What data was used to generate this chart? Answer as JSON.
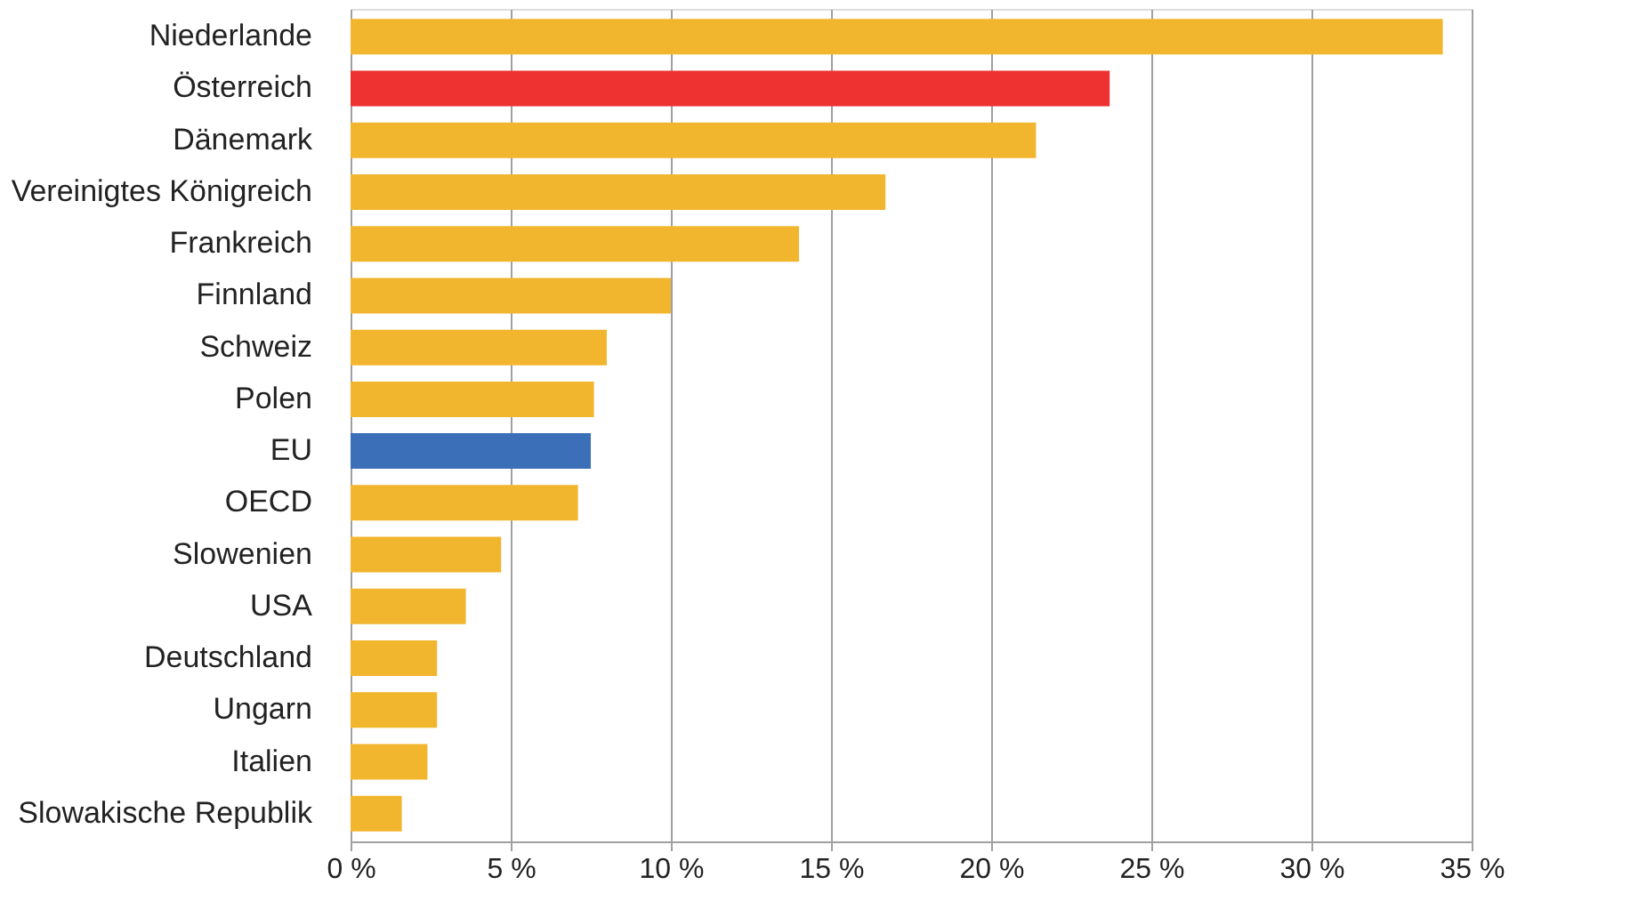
{
  "chart_data": {
    "type": "bar",
    "orientation": "horizontal",
    "categories": [
      "Niederlande",
      "Österreich",
      "Dänemark",
      "Vereinigtes Königreich",
      "Frankreich",
      "Finnland",
      "Schweiz",
      "Polen",
      "EU",
      "OECD",
      "Slowenien",
      "USA",
      "Deutschland",
      "Ungarn",
      "Italien",
      "Slowakische Republik"
    ],
    "values": [
      34.1,
      23.7,
      21.4,
      16.7,
      14.0,
      10.0,
      8.0,
      7.6,
      7.5,
      7.1,
      4.7,
      3.6,
      2.7,
      2.7,
      2.4,
      1.6
    ],
    "colors": [
      "#f2b62e",
      "#ee3232",
      "#f2b62e",
      "#f2b62e",
      "#f2b62e",
      "#f2b62e",
      "#f2b62e",
      "#f2b62e",
      "#3b70b8",
      "#f2b62e",
      "#f2b62e",
      "#f2b62e",
      "#f2b62e",
      "#f2b62e",
      "#f2b62e",
      "#f2b62e"
    ],
    "xlim": [
      0,
      35
    ],
    "xticks": [
      {
        "value": 0,
        "label": "0 %"
      },
      {
        "value": 5,
        "label": "5 %"
      },
      {
        "value": 10,
        "label": "10 %"
      },
      {
        "value": 15,
        "label": "15 %"
      },
      {
        "value": 20,
        "label": "20 %"
      },
      {
        "value": 25,
        "label": "25 %"
      },
      {
        "value": 30,
        "label": "30 %"
      },
      {
        "value": 35,
        "label": "35 %"
      }
    ],
    "grid": "x"
  }
}
